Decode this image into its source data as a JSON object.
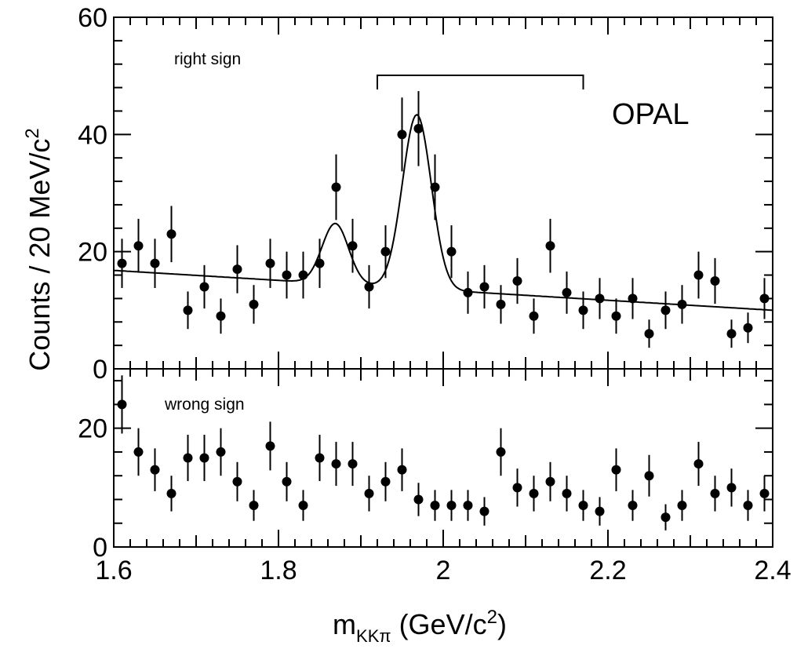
{
  "chart_data": {
    "type": "scatter",
    "experiment_label": "OPAL",
    "xlabel": {
      "main": "m",
      "sub": "KKπ",
      "rest": " (GeV/c",
      "sup": "2",
      "close": ")"
    },
    "ylabel": {
      "main": "Counts / 20 MeV/c",
      "sup": "2"
    },
    "x_range": [
      1.6,
      2.4
    ],
    "x_ticks": [
      "1.6",
      "1.8",
      "2",
      "2.2",
      "2.4"
    ],
    "x_tick_values": [
      1.6,
      1.8,
      2.0,
      2.2,
      2.4
    ],
    "signal_window": [
      1.92,
      2.17
    ],
    "panels": [
      {
        "name": "right sign",
        "label": "right sign",
        "y_range": [
          0,
          60
        ],
        "y_ticks": [
          "0",
          "20",
          "40",
          "60"
        ],
        "y_tick_values": [
          0,
          20,
          40,
          60
        ],
        "points": [
          {
            "x": 1.61,
            "y": 18,
            "err": 4.2
          },
          {
            "x": 1.63,
            "y": 21,
            "err": 4.6
          },
          {
            "x": 1.65,
            "y": 18,
            "err": 4.2
          },
          {
            "x": 1.67,
            "y": 23,
            "err": 4.8
          },
          {
            "x": 1.69,
            "y": 10,
            "err": 3.2
          },
          {
            "x": 1.71,
            "y": 14,
            "err": 3.7
          },
          {
            "x": 1.73,
            "y": 9,
            "err": 3.0
          },
          {
            "x": 1.75,
            "y": 17,
            "err": 4.1
          },
          {
            "x": 1.77,
            "y": 11,
            "err": 3.3
          },
          {
            "x": 1.79,
            "y": 18,
            "err": 4.2
          },
          {
            "x": 1.81,
            "y": 16,
            "err": 4.0
          },
          {
            "x": 1.83,
            "y": 16,
            "err": 4.0
          },
          {
            "x": 1.85,
            "y": 18,
            "err": 4.2
          },
          {
            "x": 1.87,
            "y": 31,
            "err": 5.6
          },
          {
            "x": 1.89,
            "y": 21,
            "err": 4.6
          },
          {
            "x": 1.91,
            "y": 14,
            "err": 3.7
          },
          {
            "x": 1.93,
            "y": 20,
            "err": 4.5
          },
          {
            "x": 1.95,
            "y": 40,
            "err": 6.3
          },
          {
            "x": 1.97,
            "y": 41,
            "err": 6.4
          },
          {
            "x": 1.99,
            "y": 31,
            "err": 5.6
          },
          {
            "x": 2.01,
            "y": 20,
            "err": 4.5
          },
          {
            "x": 2.03,
            "y": 13,
            "err": 3.6
          },
          {
            "x": 2.05,
            "y": 14,
            "err": 3.7
          },
          {
            "x": 2.07,
            "y": 11,
            "err": 3.3
          },
          {
            "x": 2.09,
            "y": 15,
            "err": 3.9
          },
          {
            "x": 2.11,
            "y": 9,
            "err": 3.0
          },
          {
            "x": 2.13,
            "y": 21,
            "err": 4.6
          },
          {
            "x": 2.15,
            "y": 13,
            "err": 3.6
          },
          {
            "x": 2.17,
            "y": 10,
            "err": 3.2
          },
          {
            "x": 2.19,
            "y": 12,
            "err": 3.5
          },
          {
            "x": 2.21,
            "y": 9,
            "err": 3.0
          },
          {
            "x": 2.23,
            "y": 12,
            "err": 3.5
          },
          {
            "x": 2.25,
            "y": 6,
            "err": 2.4
          },
          {
            "x": 2.27,
            "y": 10,
            "err": 3.2
          },
          {
            "x": 2.29,
            "y": 11,
            "err": 3.3
          },
          {
            "x": 2.31,
            "y": 16,
            "err": 4.0
          },
          {
            "x": 2.33,
            "y": 15,
            "err": 3.9
          },
          {
            "x": 2.35,
            "y": 6,
            "err": 2.4
          },
          {
            "x": 2.37,
            "y": 7,
            "err": 2.6
          },
          {
            "x": 2.39,
            "y": 12,
            "err": 3.5
          }
        ],
        "fit": {
          "background": {
            "intercept_at_1_6": 16.8,
            "slope_per_gev": -8.5
          },
          "peaks": [
            {
              "mean": 1.869,
              "amplitude": 10.3,
              "sigma": 0.016
            },
            {
              "mean": 1.968,
              "amplitude": 29.7,
              "sigma": 0.0175
            }
          ]
        }
      },
      {
        "name": "wrong sign",
        "label": "wrong sign",
        "y_range": [
          0,
          30
        ],
        "y_ticks": [
          "0",
          "20"
        ],
        "y_tick_values": [
          0,
          20
        ],
        "points": [
          {
            "x": 1.61,
            "y": 24,
            "err": 4.9
          },
          {
            "x": 1.63,
            "y": 16,
            "err": 4.0
          },
          {
            "x": 1.65,
            "y": 13,
            "err": 3.6
          },
          {
            "x": 1.67,
            "y": 9,
            "err": 3.0
          },
          {
            "x": 1.69,
            "y": 15,
            "err": 3.9
          },
          {
            "x": 1.71,
            "y": 15,
            "err": 3.9
          },
          {
            "x": 1.73,
            "y": 16,
            "err": 4.0
          },
          {
            "x": 1.75,
            "y": 11,
            "err": 3.3
          },
          {
            "x": 1.77,
            "y": 7,
            "err": 2.6
          },
          {
            "x": 1.79,
            "y": 17,
            "err": 4.1
          },
          {
            "x": 1.81,
            "y": 11,
            "err": 3.3
          },
          {
            "x": 1.83,
            "y": 7,
            "err": 2.6
          },
          {
            "x": 1.85,
            "y": 15,
            "err": 3.9
          },
          {
            "x": 1.87,
            "y": 14,
            "err": 3.7
          },
          {
            "x": 1.89,
            "y": 14,
            "err": 3.7
          },
          {
            "x": 1.91,
            "y": 9,
            "err": 3.0
          },
          {
            "x": 1.93,
            "y": 11,
            "err": 3.3
          },
          {
            "x": 1.95,
            "y": 13,
            "err": 3.6
          },
          {
            "x": 1.97,
            "y": 8,
            "err": 2.8
          },
          {
            "x": 1.99,
            "y": 7,
            "err": 2.6
          },
          {
            "x": 2.01,
            "y": 7,
            "err": 2.6
          },
          {
            "x": 2.03,
            "y": 7,
            "err": 2.6
          },
          {
            "x": 2.05,
            "y": 6,
            "err": 2.4
          },
          {
            "x": 2.07,
            "y": 16,
            "err": 4.0
          },
          {
            "x": 2.09,
            "y": 10,
            "err": 3.2
          },
          {
            "x": 2.11,
            "y": 9,
            "err": 3.0
          },
          {
            "x": 2.13,
            "y": 11,
            "err": 3.3
          },
          {
            "x": 2.15,
            "y": 9,
            "err": 3.0
          },
          {
            "x": 2.17,
            "y": 7,
            "err": 2.6
          },
          {
            "x": 2.19,
            "y": 6,
            "err": 2.4
          },
          {
            "x": 2.21,
            "y": 13,
            "err": 3.6
          },
          {
            "x": 2.23,
            "y": 7,
            "err": 2.6
          },
          {
            "x": 2.25,
            "y": 12,
            "err": 3.5
          },
          {
            "x": 2.27,
            "y": 5,
            "err": 2.2
          },
          {
            "x": 2.29,
            "y": 7,
            "err": 2.6
          },
          {
            "x": 2.31,
            "y": 14,
            "err": 3.7
          },
          {
            "x": 2.33,
            "y": 9,
            "err": 3.0
          },
          {
            "x": 2.35,
            "y": 10,
            "err": 3.2
          },
          {
            "x": 2.37,
            "y": 7,
            "err": 2.6
          },
          {
            "x": 2.39,
            "y": 9,
            "err": 3.0
          }
        ]
      }
    ]
  }
}
